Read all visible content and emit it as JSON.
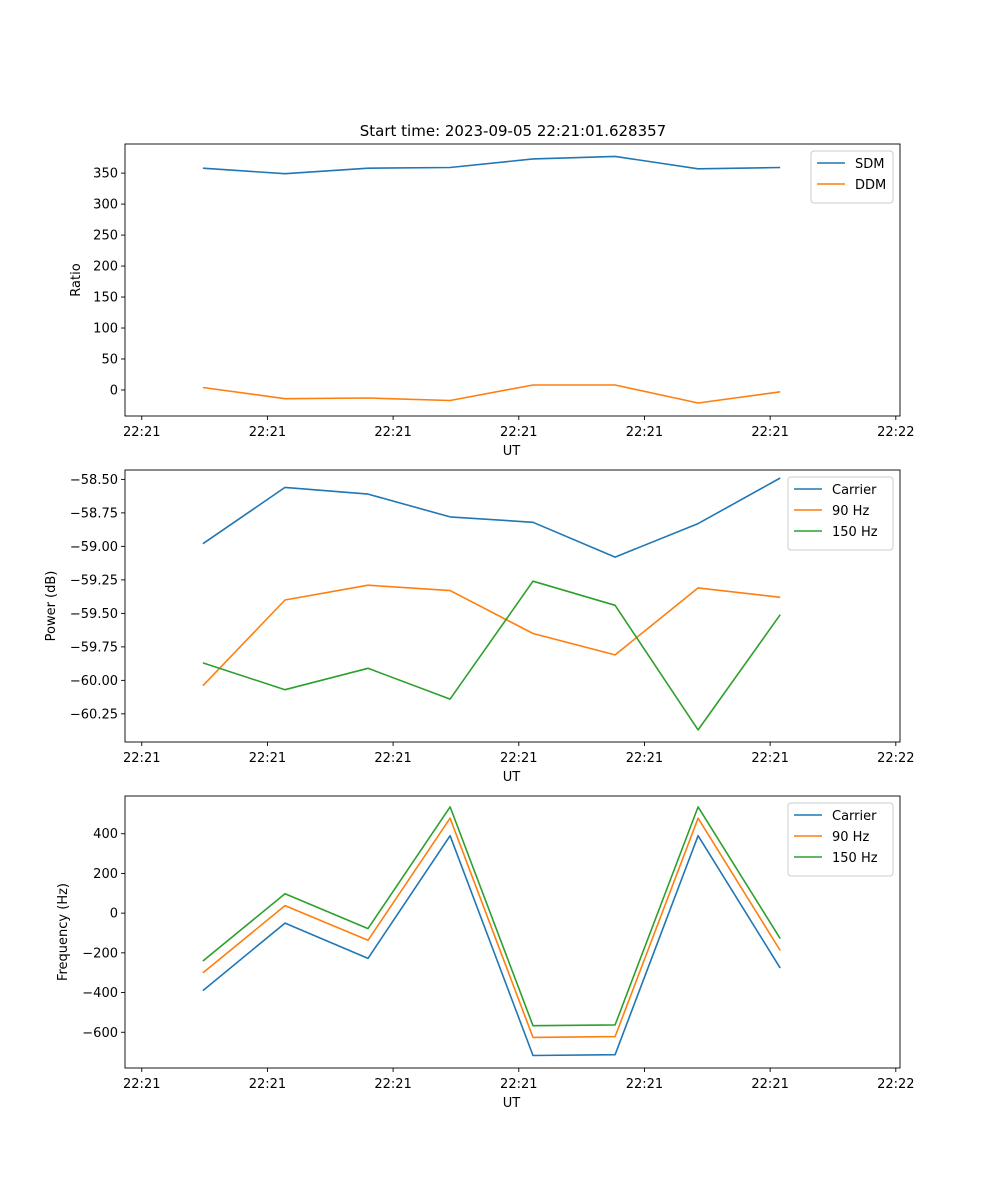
{
  "title": "Start time: 2023-09-05 22:21:01.628357",
  "chart_data": [
    {
      "type": "line",
      "title": "Start time: 2023-09-05 22:21:01.628357",
      "xlabel": "UT",
      "ylabel": "Ratio",
      "xlim": [
        0,
        9.25
      ],
      "ylim": [
        -42,
        397
      ],
      "x_ticks": [
        0.2,
        1.7,
        3.2,
        4.7,
        6.2,
        7.7,
        9.2
      ],
      "x_tick_labels": [
        "22:21",
        "22:21",
        "22:21",
        "22:21",
        "22:21",
        "22:21",
        "22:22"
      ],
      "y_ticks": [
        0,
        50,
        100,
        150,
        200,
        250,
        300,
        350
      ],
      "y_tick_labels": [
        "0",
        "50",
        "100",
        "150",
        "200",
        "250",
        "300",
        "350"
      ],
      "x": [
        0.93,
        1.91,
        2.9,
        3.88,
        4.87,
        5.85,
        6.84,
        7.82
      ],
      "legend": "top-right",
      "series": [
        {
          "name": "SDM",
          "color": "#1f77b4",
          "values": [
            358,
            349,
            358,
            359,
            373,
            377,
            357,
            359
          ]
        },
        {
          "name": "DDM",
          "color": "#ff7f0e",
          "values": [
            4,
            -14,
            -13,
            -17,
            8,
            8,
            -21,
            -3
          ]
        }
      ]
    },
    {
      "type": "line",
      "xlabel": "UT",
      "ylabel": "Power (dB)",
      "xlim": [
        0,
        9.25
      ],
      "ylim": [
        -60.46,
        -58.43
      ],
      "x_ticks": [
        0.2,
        1.7,
        3.2,
        4.7,
        6.2,
        7.7,
        9.2
      ],
      "x_tick_labels": [
        "22:21",
        "22:21",
        "22:21",
        "22:21",
        "22:21",
        "22:21",
        "22:22"
      ],
      "y_ticks": [
        -58.5,
        -58.75,
        -59.0,
        -59.25,
        -59.5,
        -59.75,
        -60.0,
        -60.25
      ],
      "y_tick_labels": [
        "−58.50",
        "−58.75",
        "−59.00",
        "−59.25",
        "−59.50",
        "−59.75",
        "−60.00",
        "−60.25"
      ],
      "x": [
        0.93,
        1.91,
        2.9,
        3.88,
        4.87,
        5.85,
        6.84,
        7.82
      ],
      "legend": "top-right",
      "series": [
        {
          "name": "Carrier",
          "color": "#1f77b4",
          "values": [
            -58.98,
            -58.56,
            -58.61,
            -58.78,
            -58.82,
            -59.08,
            -58.83,
            -58.49
          ]
        },
        {
          "name": "90 Hz",
          "color": "#ff7f0e",
          "values": [
            -60.04,
            -59.4,
            -59.29,
            -59.33,
            -59.65,
            -59.81,
            -59.31,
            -59.38
          ]
        },
        {
          "name": "150 Hz",
          "color": "#2ca02c",
          "values": [
            -59.87,
            -60.07,
            -59.91,
            -60.14,
            -59.26,
            -59.44,
            -60.37,
            -59.51
          ]
        }
      ]
    },
    {
      "type": "line",
      "xlabel": "UT",
      "ylabel": "Frequency (Hz)",
      "xlim": [
        0,
        9.25
      ],
      "ylim": [
        -780,
        590
      ],
      "x_ticks": [
        0.2,
        1.7,
        3.2,
        4.7,
        6.2,
        7.7,
        9.2
      ],
      "x_tick_labels": [
        "22:21",
        "22:21",
        "22:21",
        "22:21",
        "22:21",
        "22:21",
        "22:22"
      ],
      "y_ticks": [
        -600,
        -400,
        -200,
        0,
        200,
        400
      ],
      "y_tick_labels": [
        "−600",
        "−400",
        "−200",
        "0",
        "200",
        "400"
      ],
      "x": [
        0.93,
        1.91,
        2.9,
        3.88,
        4.87,
        5.85,
        6.84,
        7.82
      ],
      "legend": "top-right",
      "series": [
        {
          "name": "Carrier",
          "color": "#1f77b4",
          "values": [
            -390,
            -50,
            -228,
            390,
            -717,
            -713,
            390,
            -277
          ]
        },
        {
          "name": "90 Hz",
          "color": "#ff7f0e",
          "values": [
            -301,
            38,
            -137,
            478,
            -626,
            -622,
            478,
            -188
          ]
        },
        {
          "name": "150 Hz",
          "color": "#2ca02c",
          "values": [
            -241,
            98,
            -78,
            535,
            -567,
            -563,
            535,
            -128
          ]
        }
      ]
    }
  ]
}
